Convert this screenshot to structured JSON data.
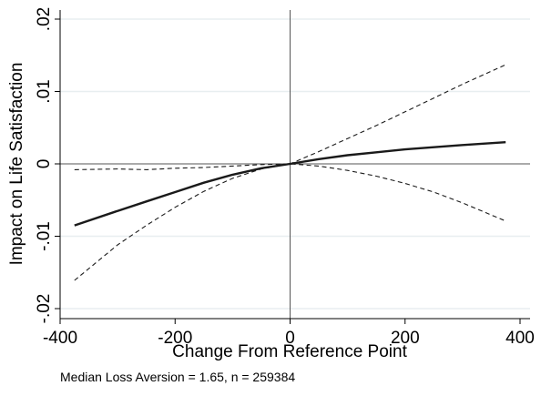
{
  "chart_data": {
    "type": "line",
    "title": "",
    "xlabel": "Change From Reference Point",
    "ylabel": "Impact on Life Satisfaction",
    "note": "Median Loss Aversion = 1.65, n = 259384",
    "xlim": [
      -400,
      400
    ],
    "ylim": [
      -0.02,
      0.02
    ],
    "xticks": [
      -400,
      -200,
      0,
      200,
      400
    ],
    "xtick_labels": [
      "-400",
      "-200",
      "0",
      "200",
      "400"
    ],
    "yticks": [
      -0.02,
      -0.01,
      0,
      0.01,
      0.02
    ],
    "ytick_labels": [
      "-.02",
      "-.01",
      "0",
      ".01",
      ".02"
    ],
    "grid": "horizontal",
    "reference_lines": {
      "x": 0,
      "y": 0
    },
    "legend": "none",
    "colors": {
      "line": "#1a1a1a",
      "grid": "#e8eef0",
      "reference": "#555555",
      "axis": "#000000"
    },
    "x": [
      -375,
      -300,
      -250,
      -200,
      -150,
      -100,
      -50,
      0,
      50,
      100,
      150,
      200,
      250,
      300,
      375
    ],
    "series": [
      {
        "style": "solid",
        "values": [
          -0.0085,
          -0.0065,
          -0.0052,
          -0.0039,
          -0.0026,
          -0.0015,
          -0.0006,
          0.0,
          0.00065,
          0.0012,
          0.0016,
          0.002,
          0.0023,
          0.0026,
          0.003
        ]
      },
      {
        "style": "dashed",
        "values": [
          -0.0161,
          -0.0112,
          -0.0085,
          -0.006,
          -0.0038,
          -0.002,
          -0.0007,
          0.0,
          0.0017,
          0.0035,
          0.0053,
          0.0072,
          0.0091,
          0.011,
          0.0137
        ]
      },
      {
        "style": "dashed",
        "values": [
          -0.0008,
          -0.0007,
          -0.0008,
          -0.0006,
          -0.0005,
          -0.0003,
          -0.0001,
          0.0,
          -0.0003,
          -0.0009,
          -0.0017,
          -0.0027,
          -0.0039,
          -0.0054,
          -0.0079
        ]
      }
    ]
  }
}
